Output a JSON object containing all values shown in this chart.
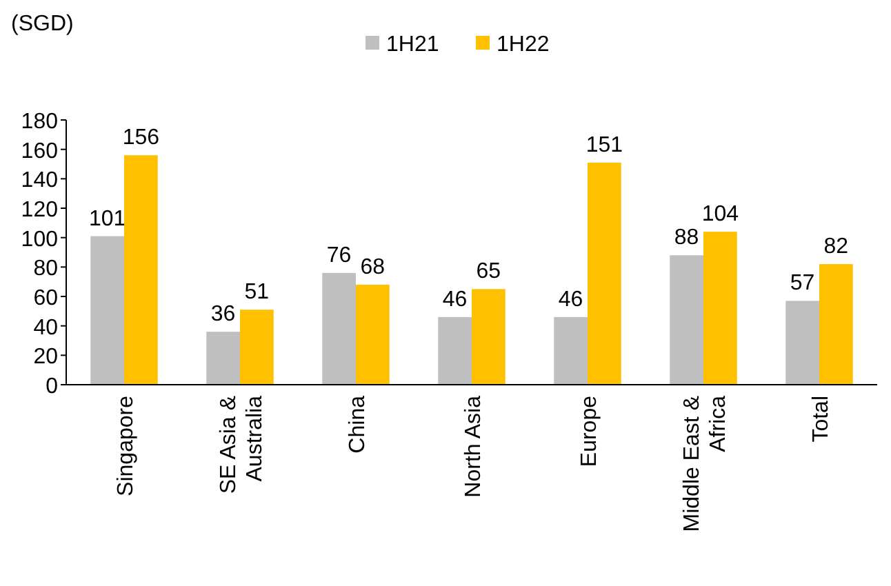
{
  "chart_data": {
    "type": "bar",
    "ylabel": "(SGD)",
    "categories": [
      "Singapore",
      "SE Asia & Australia",
      "China",
      "North Asia",
      "Europe",
      "Middle East & Africa",
      "Total"
    ],
    "series": [
      {
        "name": "1H21",
        "color": "#bfbfbf",
        "values": [
          101,
          36,
          76,
          46,
          46,
          88,
          57
        ]
      },
      {
        "name": "1H22",
        "color": "#ffc000",
        "values": [
          156,
          51,
          68,
          65,
          151,
          104,
          82
        ]
      }
    ],
    "ylim": [
      0,
      180
    ],
    "yticks": [
      0,
      20,
      40,
      60,
      80,
      100,
      120,
      140,
      160,
      180
    ],
    "grid": false,
    "legend": "top",
    "data_labels": true
  }
}
